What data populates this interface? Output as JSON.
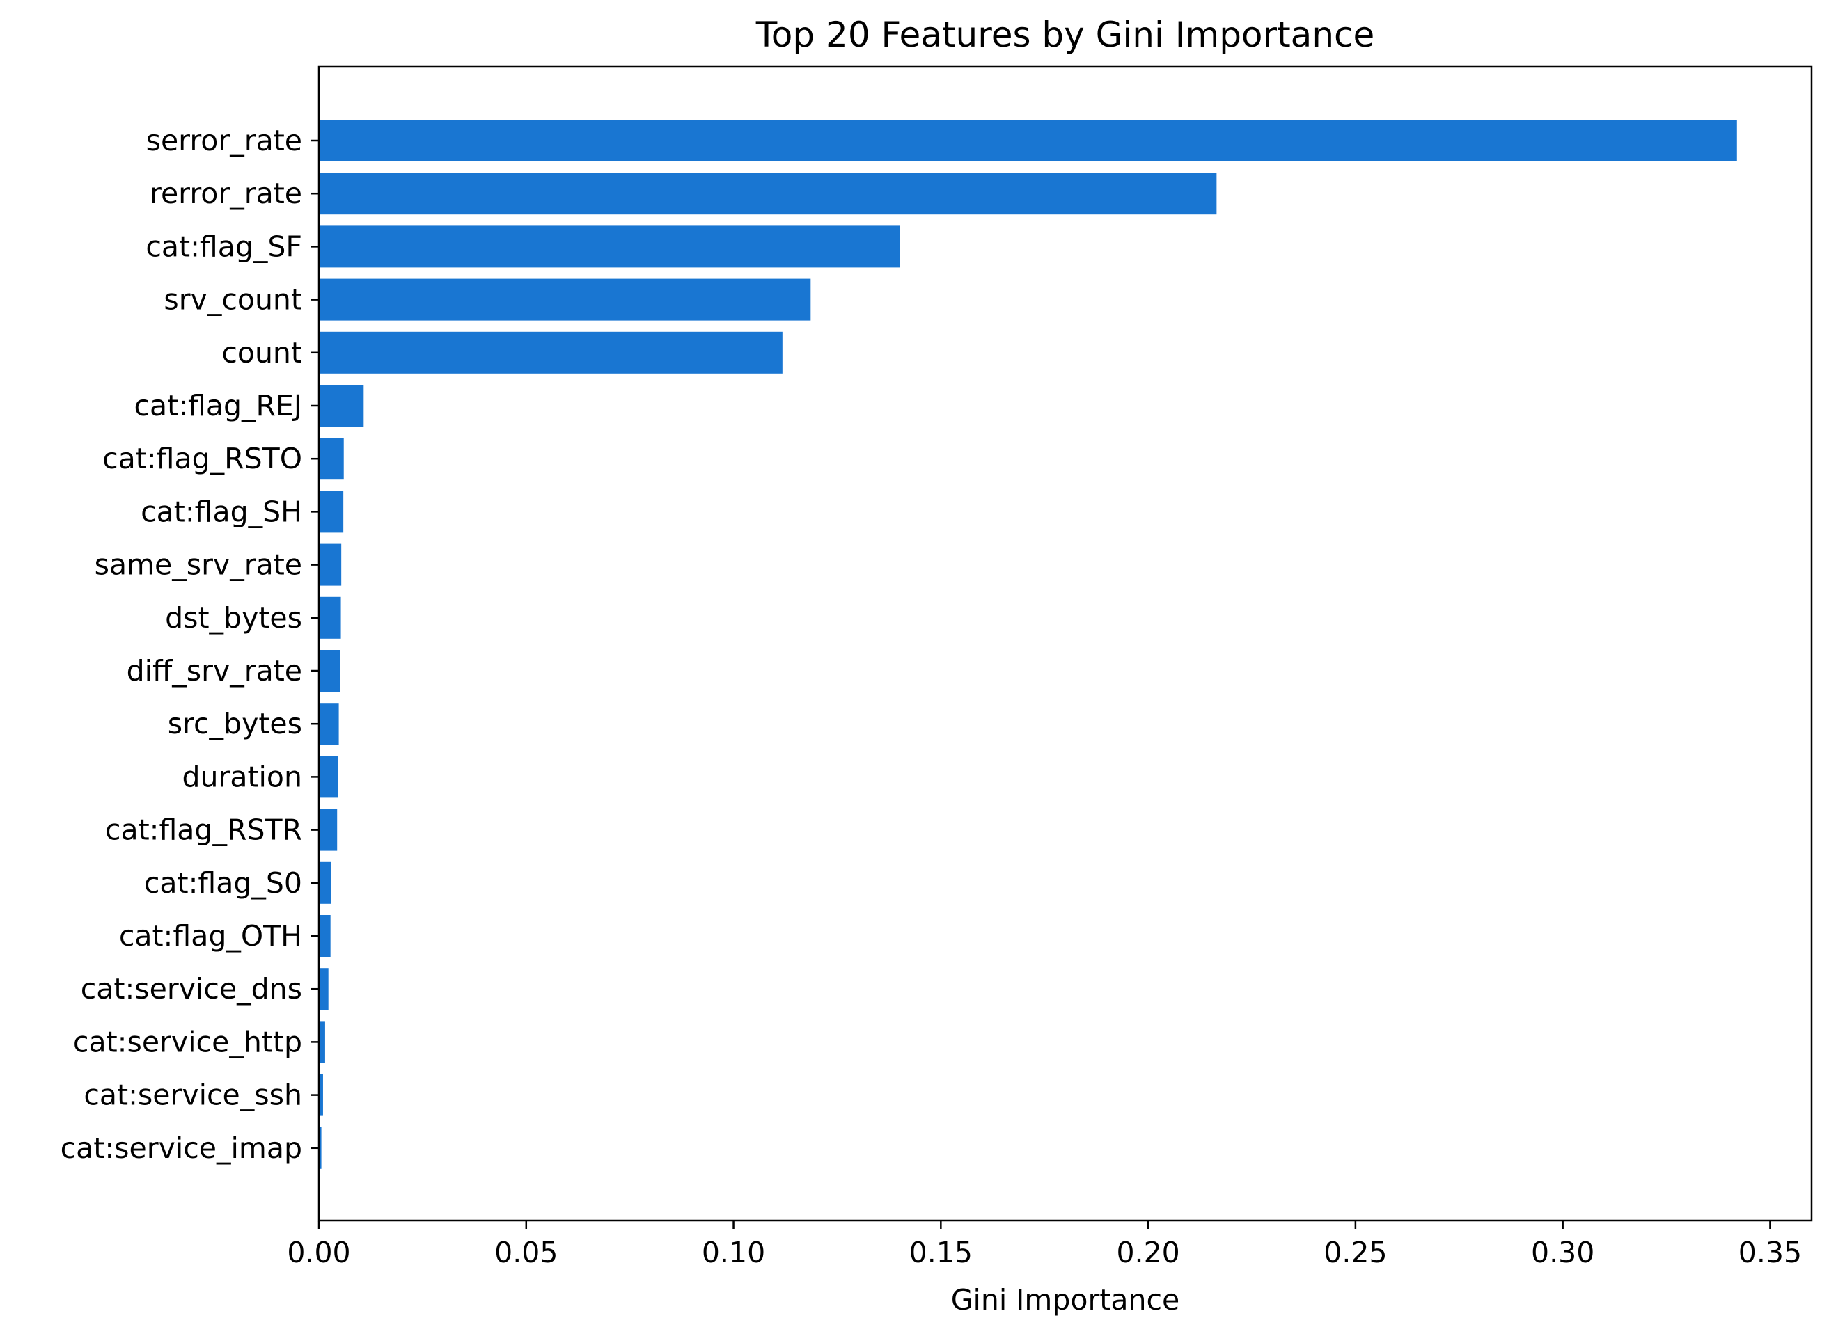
{
  "chart_data": {
    "type": "bar",
    "orientation": "horizontal",
    "title": "Top 20 Features by Gini Importance",
    "xlabel": "Gini Importance",
    "ylabel": "",
    "xlim": [
      0,
      0.36
    ],
    "x_ticks": [
      0.0,
      0.05,
      0.1,
      0.15,
      0.2,
      0.25,
      0.3,
      0.35
    ],
    "x_tick_labels": [
      "0.00",
      "0.05",
      "0.10",
      "0.15",
      "0.20",
      "0.25",
      "0.30",
      "0.35"
    ],
    "grid": false,
    "legend": "none",
    "bar_color": "#1976D2",
    "categories": [
      "serror_rate",
      "rerror_rate",
      "cat:flag_SF",
      "srv_count",
      "count",
      "cat:flag_REJ",
      "cat:flag_RSTO",
      "cat:flag_SH",
      "same_srv_rate",
      "dst_bytes",
      "diff_srv_rate",
      "src_bytes",
      "duration",
      "cat:flag_RSTR",
      "cat:flag_S0",
      "cat:flag_OTH",
      "cat:service_dns",
      "cat:service_http",
      "cat:service_ssh",
      "cat:service_imap"
    ],
    "values": [
      0.342,
      0.2165,
      0.1402,
      0.1186,
      0.1118,
      0.0108,
      0.006,
      0.0059,
      0.0054,
      0.0053,
      0.0051,
      0.0048,
      0.0047,
      0.0044,
      0.0029,
      0.0028,
      0.0023,
      0.0015,
      0.001,
      0.0006
    ]
  }
}
